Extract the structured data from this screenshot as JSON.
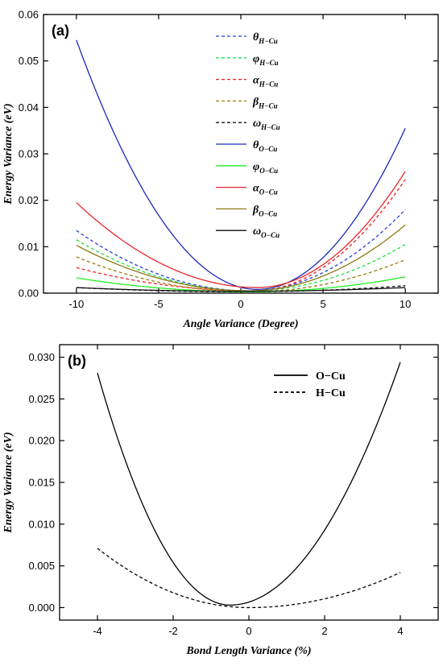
{
  "chart_data": [
    {
      "type": "line",
      "panel_label": "(a)",
      "xlabel": "Angle Variance (Degree)",
      "ylabel": "Energy Variance (eV)",
      "xlim": [
        -12,
        12
      ],
      "ylim": [
        0,
        0.06
      ],
      "xticks": [
        -10,
        -5,
        0,
        5,
        10
      ],
      "xtick_labels": [
        "-10",
        "-5",
        "0",
        "5",
        "10"
      ],
      "yticks": [
        0,
        0.01,
        0.02,
        0.03,
        0.04,
        0.05,
        0.06
      ],
      "ytick_labels": [
        "0.00",
        "0.01",
        "0.02",
        "0.03",
        "0.04",
        "0.05",
        "0.06"
      ],
      "legend_position": "top-center",
      "series": [
        {
          "sym": "θ",
          "sub": "H−Cu",
          "color": "#2a3fd6",
          "dash": true,
          "x": [
            -10,
            0.5,
            10
          ],
          "y": [
            0.0135,
            0.0005,
            0.018
          ]
        },
        {
          "sym": "φ",
          "sub": "H−Cu",
          "color": "#22dd44",
          "dash": true,
          "x": [
            -10,
            0.5,
            10
          ],
          "y": [
            0.0115,
            0.0005,
            0.0105
          ]
        },
        {
          "sym": "α",
          "sub": "H−Cu",
          "color": "#ee2020",
          "dash": true,
          "x": [
            -10,
            0.8,
            10
          ],
          "y": [
            0.0055,
            0.0005,
            0.0245
          ]
        },
        {
          "sym": "β",
          "sub": "H−Cu",
          "color": "#9a7c10",
          "dash": true,
          "x": [
            -10,
            0.5,
            10
          ],
          "y": [
            0.0078,
            0.0003,
            0.0072
          ]
        },
        {
          "sym": "ω",
          "sub": "H−Cu",
          "color": "#111111",
          "dash": true,
          "x": [
            -10,
            0.0,
            10
          ],
          "y": [
            0.0012,
            0.0003,
            0.0016
          ]
        },
        {
          "sym": "θ",
          "sub": "O−Cu",
          "color": "#1a2ab8",
          "dash": false,
          "x": [
            -10,
            1.0,
            10
          ],
          "y": [
            0.0545,
            0.0008,
            0.0355
          ]
        },
        {
          "sym": "φ",
          "sub": "O−Cu",
          "color": "#22ee22",
          "dash": false,
          "x": [
            -10,
            0.5,
            10
          ],
          "y": [
            0.0033,
            0.0003,
            0.0035
          ]
        },
        {
          "sym": "α",
          "sub": "O−Cu",
          "color": "#e8262c",
          "dash": false,
          "x": [
            -10,
            1.0,
            10
          ],
          "y": [
            0.0195,
            0.0012,
            0.0262
          ]
        },
        {
          "sym": "β",
          "sub": "O−Cu",
          "color": "#8c7a14",
          "dash": false,
          "x": [
            -10,
            0.5,
            10
          ],
          "y": [
            0.0103,
            0.0005,
            0.0147
          ]
        },
        {
          "sym": "ω",
          "sub": "O−Cu",
          "color": "#111111",
          "dash": false,
          "x": [
            -10,
            0.0,
            10
          ],
          "y": [
            0.0012,
            0.0004,
            0.0012
          ]
        }
      ]
    },
    {
      "type": "line",
      "panel_label": "(b)",
      "xlabel": "Bond Length Variance (%)",
      "ylabel": "Energy Variance (eV)",
      "xlim": [
        -5,
        5
      ],
      "ylim": [
        -0.0015,
        0.0315
      ],
      "xticks": [
        -4,
        -2,
        0,
        2,
        4
      ],
      "xtick_labels": [
        "-4",
        "-2",
        "0",
        "2",
        "4"
      ],
      "yticks": [
        0,
        0.005,
        0.01,
        0.015,
        0.02,
        0.025,
        0.03
      ],
      "ytick_labels": [
        "0.000",
        "0.005",
        "0.010",
        "0.015",
        "0.020",
        "0.025",
        "0.030"
      ],
      "legend_position": "top-right",
      "series": [
        {
          "name": "O−Cu",
          "color": "#000000",
          "dash": false,
          "x": [
            -4,
            -0.5,
            4
          ],
          "y": [
            0.0281,
            0.0003,
            0.0294
          ]
        },
        {
          "name": "H−Cu",
          "color": "#000000",
          "dash": true,
          "x": [
            -4,
            0.0,
            4
          ],
          "y": [
            0.0071,
            0.0,
            0.0042
          ]
        }
      ]
    }
  ]
}
